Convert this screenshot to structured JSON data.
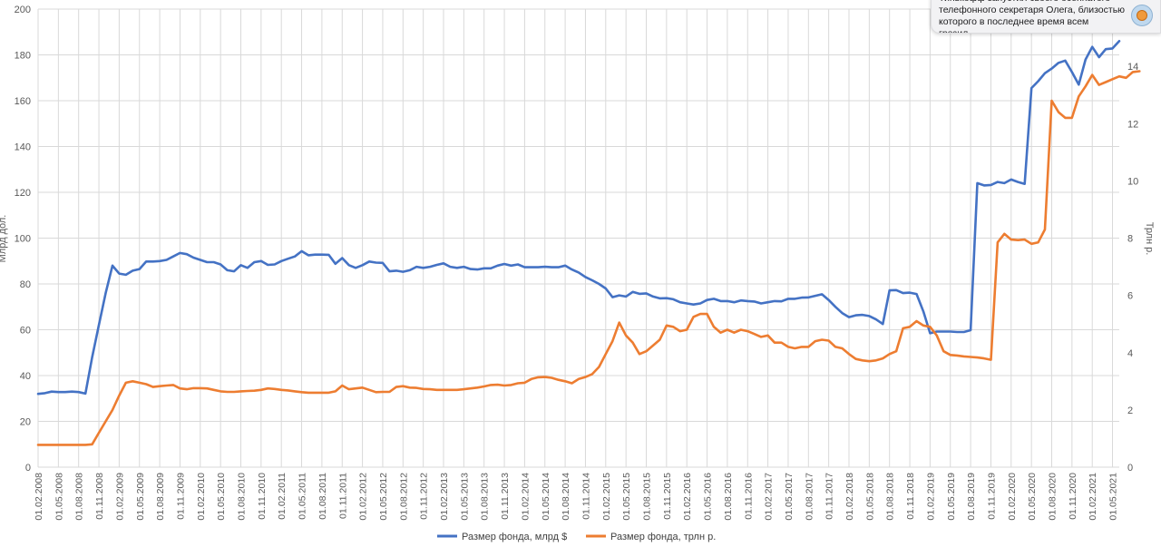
{
  "chart_data": {
    "type": "line",
    "title": "",
    "ylabel": "Млрд дол.",
    "y2label": "Трлн р.",
    "ylim": [
      0,
      200
    ],
    "y2lim": [
      0,
      16
    ],
    "yticks": [
      "0",
      "20",
      "40",
      "60",
      "80",
      "100",
      "120",
      "140",
      "160",
      "180",
      "200"
    ],
    "y2ticks": [
      "0",
      "2",
      "4",
      "6",
      "8",
      "10",
      "12",
      "14"
    ],
    "x_start": "2008-02",
    "x_step_months": 1,
    "xticks": [
      "01.02.2008",
      "01.05.2008",
      "01.08.2008",
      "01.11.2008",
      "01.02.2009",
      "01.05.2009",
      "01.08.2009",
      "01.11.2009",
      "01.02.2010",
      "01.05.2010",
      "01.08.2010",
      "01.11.2010",
      "01.02.2011",
      "01.05.2011",
      "01.08.2011",
      "01.11.2011",
      "01.02.2012",
      "01.05.2012",
      "01.08.2012",
      "01.11.2012",
      "01.02.2013",
      "01.05.2013",
      "01.08.2013",
      "01.11.2013",
      "01.02.2014",
      "01.05.2014",
      "01.08.2014",
      "01.11.2014",
      "01.02.2015",
      "01.05.2015",
      "01.08.2015",
      "01.11.2015",
      "01.02.2016",
      "01.05.2016",
      "01.08.2016",
      "01.11.2016",
      "01.02.2017",
      "01.05.2017",
      "01.08.2017",
      "01.11.2017",
      "01.02.2018",
      "01.05.2018",
      "01.08.2018",
      "01.11.2018",
      "01.02.2019",
      "01.05.2019",
      "01.08.2019",
      "01.11.2019",
      "01.02.2020",
      "01.05.2020",
      "01.08.2020",
      "01.11.2020",
      "01.02.2021",
      "01.05.2021"
    ],
    "grid": true,
    "legend_position": "bottom",
    "series": [
      {
        "name": "Размер фонда, млрд $",
        "axis": "left",
        "color": "#4472c4",
        "values": [
          32,
          32.3,
          33,
          32.8,
          32.8,
          33,
          32.8,
          32.1,
          48,
          62,
          76,
          88,
          84.5,
          84,
          85.8,
          86.5,
          89.8,
          89.8,
          90,
          90.5,
          92,
          93.5,
          93,
          91.5,
          90.5,
          89.5,
          89.5,
          88.5,
          86,
          85.5,
          88.2,
          87,
          89.5,
          90,
          88.3,
          88.5,
          90,
          91,
          92,
          94.3,
          92.5,
          92.8,
          92.8,
          92.7,
          88.8,
          91.3,
          88.2,
          87,
          88.2,
          89.8,
          89.3,
          89.2,
          85.5,
          85.8,
          85.3,
          86,
          87.5,
          87,
          87.5,
          88.3,
          89,
          87.5,
          87,
          87.5,
          86.5,
          86.3,
          86.8,
          86.8,
          88,
          88.7,
          88,
          88.5,
          87.3,
          87.3,
          87.3,
          87.5,
          87.3,
          87.3,
          88,
          86.3,
          85,
          83,
          81.6,
          80,
          78,
          74.2,
          75,
          74.5,
          76.5,
          75.7,
          75.9,
          74.5,
          73.7,
          73.8,
          73.3,
          72,
          71.5,
          71,
          71.5,
          73,
          73.5,
          72.5,
          72.5,
          72,
          72.8,
          72.5,
          72.3,
          71.5,
          72,
          72.5,
          72.4,
          73.5,
          73.5,
          74,
          74.1,
          74.8,
          75.5,
          73,
          70,
          67.3,
          65.5,
          66.3,
          66.5,
          66,
          64.5,
          62.5,
          77.2,
          77.3,
          76,
          76.2,
          75.6,
          68,
          58.5,
          59.2,
          59.2,
          59.2,
          59,
          59,
          59.8,
          124,
          123,
          123.2,
          124.5,
          124,
          125.6,
          124.5,
          123.7,
          165.5,
          168.5,
          172,
          174,
          176.5,
          177.5,
          172.5,
          167,
          178,
          183.5,
          179,
          182.5,
          182.8,
          186
        ]
      },
      {
        "name": "Размер фонда, трлн р.",
        "axis": "right",
        "color": "#ed7d31",
        "values": [
          0.78,
          0.78,
          0.78,
          0.78,
          0.78,
          0.78,
          0.78,
          0.78,
          0.8,
          1.2,
          1.6,
          2,
          2.5,
          2.95,
          3.0,
          2.95,
          2.9,
          2.8,
          2.83,
          2.85,
          2.87,
          2.75,
          2.72,
          2.76,
          2.76,
          2.75,
          2.7,
          2.65,
          2.63,
          2.63,
          2.65,
          2.66,
          2.67,
          2.7,
          2.75,
          2.73,
          2.7,
          2.68,
          2.65,
          2.62,
          2.6,
          2.6,
          2.6,
          2.6,
          2.65,
          2.85,
          2.72,
          2.75,
          2.78,
          2.7,
          2.62,
          2.63,
          2.63,
          2.8,
          2.83,
          2.78,
          2.77,
          2.73,
          2.72,
          2.7,
          2.7,
          2.7,
          2.7,
          2.72,
          2.75,
          2.78,
          2.82,
          2.87,
          2.88,
          2.85,
          2.87,
          2.93,
          2.95,
          3.08,
          3.14,
          3.15,
          3.12,
          3.05,
          3,
          2.93,
          3.08,
          3.15,
          3.25,
          3.5,
          3.95,
          4.4,
          5.05,
          4.6,
          4.35,
          3.95,
          4.05,
          4.25,
          4.45,
          4.95,
          4.9,
          4.75,
          4.8,
          5.25,
          5.35,
          5.35,
          4.9,
          4.7,
          4.8,
          4.7,
          4.8,
          4.75,
          4.65,
          4.55,
          4.6,
          4.35,
          4.35,
          4.2,
          4.15,
          4.2,
          4.2,
          4.4,
          4.45,
          4.42,
          4.2,
          4.15,
          3.95,
          3.78,
          3.73,
          3.7,
          3.73,
          3.8,
          3.95,
          4.05,
          4.85,
          4.9,
          5.1,
          4.95,
          4.9,
          4.6,
          4.05,
          3.92,
          3.9,
          3.87,
          3.85,
          3.83,
          3.8,
          3.75,
          7.85,
          8.15,
          7.95,
          7.93,
          7.95,
          7.8,
          7.85,
          8.3,
          12.8,
          12.4,
          12.2,
          12.2,
          12.95,
          13.3,
          13.7,
          13.35,
          13.45,
          13.55,
          13.65,
          13.6,
          13.8,
          13.83
        ]
      }
    ]
  },
  "notification": {
    "text": "Тинькофф запустил своего осеннатого телефонного секретаря Олега, близостью которого в последнее время всем грозил,..."
  }
}
